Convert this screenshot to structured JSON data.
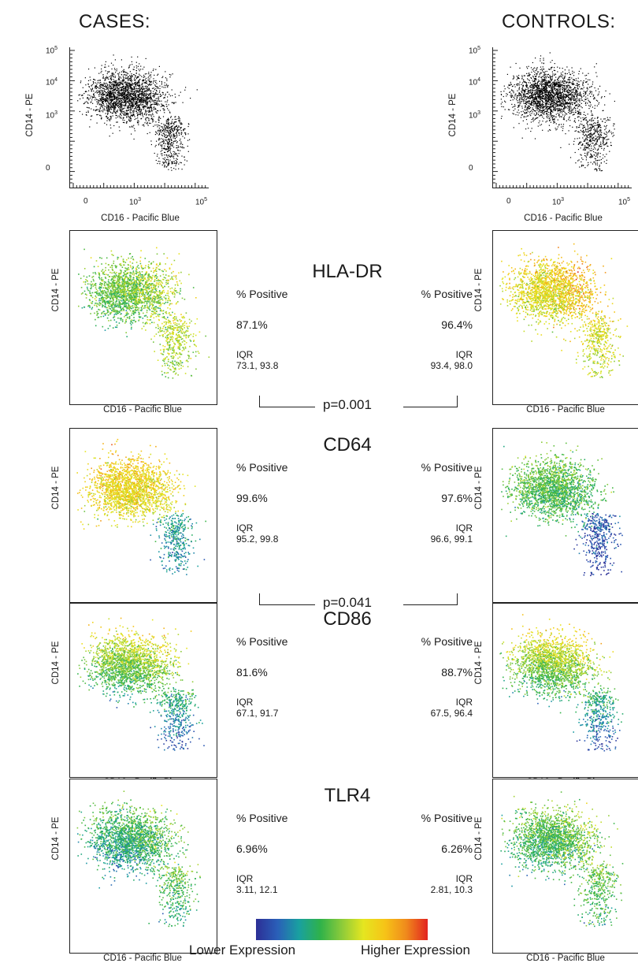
{
  "headers": {
    "cases": "CASES:",
    "controls": "CONTROLS:"
  },
  "axis": {
    "x": "CD16 - Pacific Blue",
    "y": "CD14 - PE"
  },
  "ticks": {
    "y": [
      {
        "base": "10",
        "exp": "5"
      },
      {
        "base": "10",
        "exp": "4"
      },
      {
        "base": "10",
        "exp": "3"
      },
      {
        "base": "0",
        "exp": ""
      }
    ],
    "x": [
      {
        "base": "0",
        "exp": ""
      },
      {
        "base": "10",
        "exp": "3"
      },
      {
        "base": "10",
        "exp": "5"
      }
    ]
  },
  "labels": {
    "percent_positive": "% Positive",
    "iqr": "IQR"
  },
  "legend": {
    "low": "Lower Expression",
    "high": "Higher Expression",
    "colors": [
      "#2c2f96",
      "#2a5fb8",
      "#19a0a0",
      "#2fb24a",
      "#8ccb3a",
      "#e5e620",
      "#f6c417",
      "#f08a1c",
      "#e2231f"
    ]
  },
  "chart_data": {
    "type": "table",
    "markers": [
      {
        "name": "HLA-DR",
        "cases": {
          "pct": "87.1%",
          "iqr": "73.1, 93.8"
        },
        "controls": {
          "pct": "96.4%",
          "iqr": "93.4, 98.0"
        },
        "p": "p=0.001"
      },
      {
        "name": "CD64",
        "cases": {
          "pct": "99.6%",
          "iqr": "95.2, 99.8"
        },
        "controls": {
          "pct": "97.6%",
          "iqr": "96.6, 99.1"
        },
        "p": "p=0.041"
      },
      {
        "name": "CD86",
        "cases": {
          "pct": "81.6%",
          "iqr": "67.1, 91.7"
        },
        "controls": {
          "pct": "88.7%",
          "iqr": "67.5, 96.4"
        },
        "p": ""
      },
      {
        "name": "TLR4",
        "cases": {
          "pct": "6.96%",
          "iqr": "3.11, 12.1"
        },
        "controls": {
          "pct": "6.26%",
          "iqr": "2.81, 10.3"
        },
        "p": ""
      }
    ]
  }
}
